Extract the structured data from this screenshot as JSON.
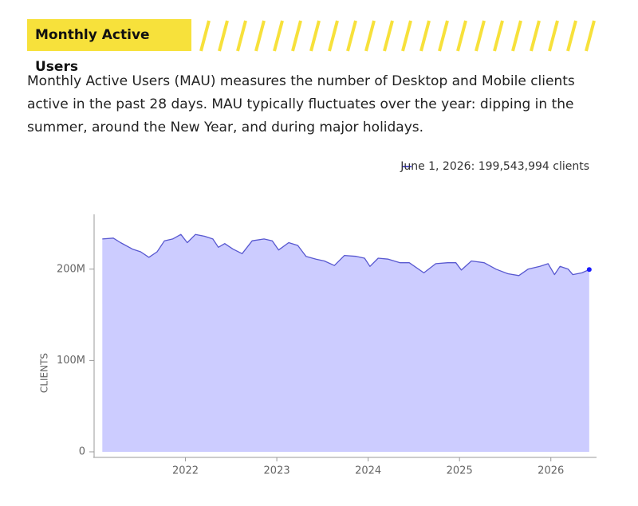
{
  "header": {
    "title": "Monthly Active Users"
  },
  "description": "Monthly Active Users (MAU) measures the number of Desktop and Mobile clients active in the past 28 days. MAU typically fluctuates over the year: dipping in the summer, around the New Year, and during major holidays.",
  "chart_data": {
    "type": "area",
    "hover_label": "June 1, 2026: 199,543,994 clients",
    "y_label": "CLIENTS",
    "color": "#5858d0",
    "fill": "#ccccff",
    "x": [
      2021.09,
      2021.21,
      2021.29,
      2021.42,
      2021.51,
      2021.6,
      2021.69,
      2021.77,
      2021.86,
      2021.95,
      2022.02,
      2022.11,
      2022.21,
      2022.3,
      2022.36,
      2022.43,
      2022.52,
      2022.62,
      2022.73,
      2022.86,
      2022.95,
      2023.02,
      2023.13,
      2023.23,
      2023.32,
      2023.43,
      2023.52,
      2023.63,
      2023.74,
      2023.87,
      2023.96,
      2024.02,
      2024.11,
      2024.22,
      2024.35,
      2024.45,
      2024.61,
      2024.74,
      2024.87,
      2024.96,
      2025.02,
      2025.13,
      2025.27,
      2025.4,
      2025.53,
      2025.65,
      2025.75,
      2025.88,
      2025.97,
      2026.04,
      2026.1,
      2026.19,
      2026.24,
      2026.34,
      2026.42
    ],
    "values": [
      233000000,
      234000000,
      229000000,
      222000000,
      219000000,
      213000000,
      219000000,
      231000000,
      233000000,
      238000000,
      229000000,
      238000000,
      236000000,
      233000000,
      224000000,
      228000000,
      222000000,
      217000000,
      231000000,
      233000000,
      231000000,
      221000000,
      229000000,
      226000000,
      214000000,
      211000000,
      209000000,
      204000000,
      215000000,
      214000000,
      212000000,
      203000000,
      212000000,
      211000000,
      207000000,
      207000000,
      196000000,
      206000000,
      207000000,
      207000000,
      199000000,
      209000000,
      207000000,
      200000000,
      195000000,
      193000000,
      200000000,
      203000000,
      206000000,
      194000000,
      203000000,
      200000000,
      194000000,
      196000000,
      199543994
    ],
    "xlim": [
      2021.0,
      2026.5
    ],
    "xticks": [
      2022,
      2023,
      2024,
      2025,
      2026
    ],
    "ylim": [
      0,
      260000000
    ],
    "yticks": [
      0,
      {
        "value": 100000000,
        "label": "100M"
      },
      {
        "value": 200000000,
        "label": "200M"
      }
    ]
  }
}
